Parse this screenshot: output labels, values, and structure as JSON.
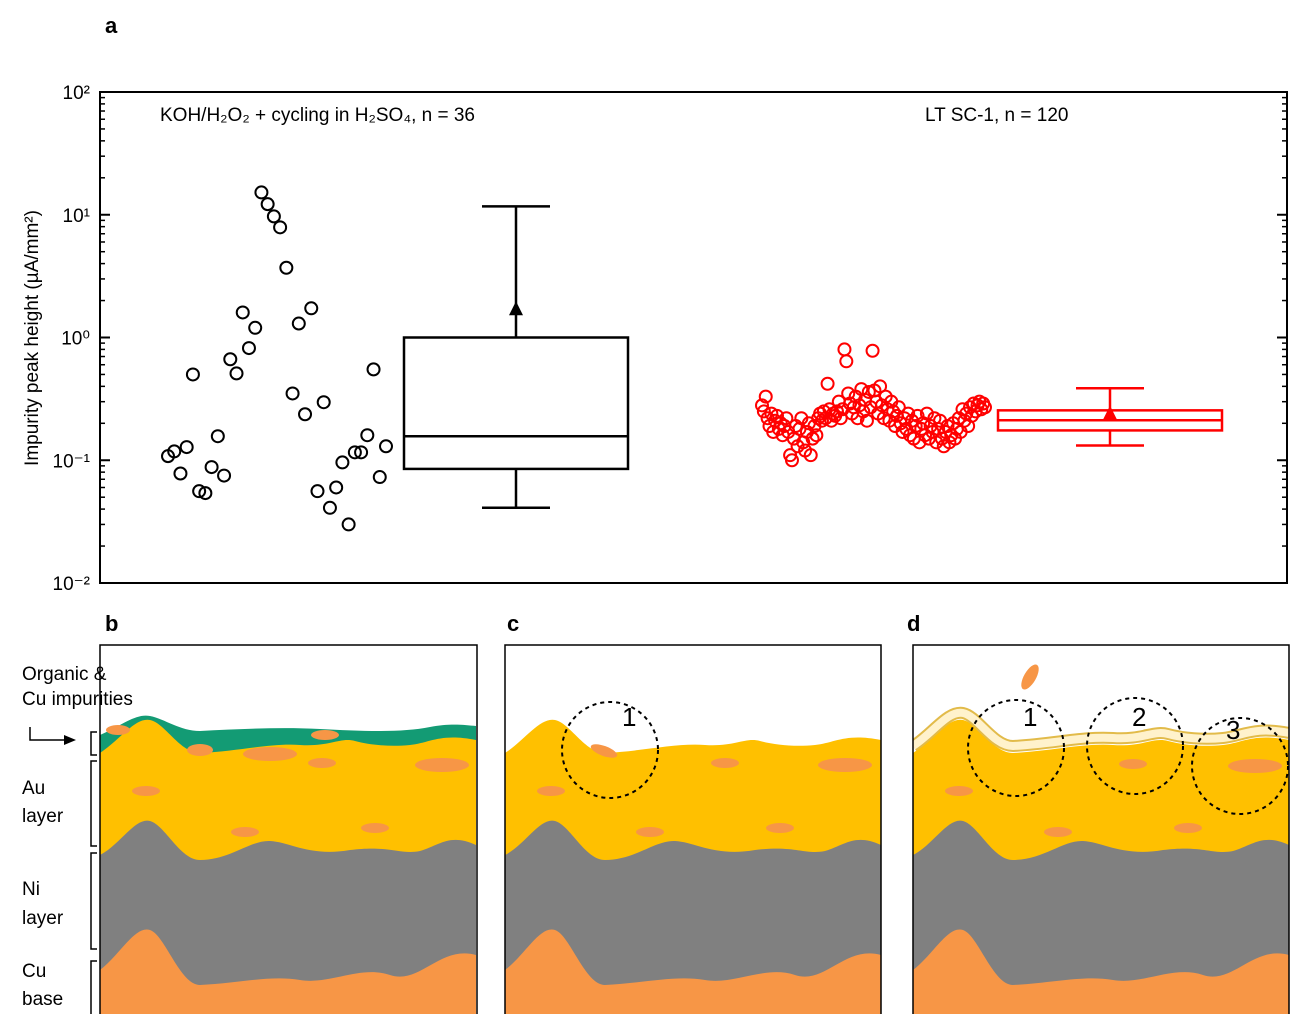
{
  "chart_data": {
    "type": "scatter_box",
    "panel_label": "a",
    "ylabel": "Impurity peak height (µA/mm²)",
    "log_scale": true,
    "ylim": [
      0.01,
      100
    ],
    "yticks": [
      {
        "value": 0.01,
        "label": "10⁻²"
      },
      {
        "value": 0.1,
        "label": "10⁻¹"
      },
      {
        "value": 1,
        "label": "10⁰"
      },
      {
        "value": 10,
        "label": "10¹"
      },
      {
        "value": 100,
        "label": "10²"
      }
    ],
    "series": [
      {
        "name": "KOH/H₂O₂ + cycling in H₂SO₄, n = 36",
        "color": "#000000",
        "values": [
          0.108,
          0.118,
          0.078,
          0.128,
          0.5,
          0.056,
          0.054,
          0.088,
          0.157,
          0.075,
          0.665,
          0.51,
          1.6,
          0.82,
          1.2,
          15.2,
          12.2,
          9.7,
          7.9,
          3.7,
          0.35,
          1.3,
          0.237,
          1.73,
          0.056,
          0.297,
          0.041,
          0.06,
          0.096,
          0.03,
          0.116,
          0.116,
          0.16,
          0.55,
          0.073,
          0.13
        ],
        "box": {
          "whisker_high": 11.7,
          "mean": 1.7,
          "q3": 1.0,
          "median": 0.157,
          "q1": 0.085,
          "whisker_low": 0.041
        }
      },
      {
        "name": "LT SC-1, n = 120",
        "color": "#ff0000",
        "values": [
          0.28,
          0.25,
          0.33,
          0.22,
          0.19,
          0.24,
          0.17,
          0.21,
          0.23,
          0.18,
          0.2,
          0.16,
          0.19,
          0.22,
          0.17,
          0.11,
          0.1,
          0.15,
          0.19,
          0.13,
          0.18,
          0.22,
          0.14,
          0.12,
          0.17,
          0.2,
          0.11,
          0.15,
          0.19,
          0.16,
          0.22,
          0.24,
          0.21,
          0.25,
          0.22,
          0.42,
          0.26,
          0.21,
          0.24,
          0.23,
          0.25,
          0.3,
          0.22,
          0.26,
          0.8,
          0.64,
          0.35,
          0.29,
          0.24,
          0.27,
          0.33,
          0.22,
          0.28,
          0.38,
          0.25,
          0.31,
          0.21,
          0.36,
          0.27,
          0.78,
          0.37,
          0.3,
          0.24,
          0.4,
          0.28,
          0.22,
          0.33,
          0.26,
          0.21,
          0.3,
          0.25,
          0.19,
          0.23,
          0.27,
          0.2,
          0.17,
          0.22,
          0.18,
          0.24,
          0.16,
          0.21,
          0.15,
          0.19,
          0.23,
          0.14,
          0.18,
          0.2,
          0.16,
          0.24,
          0.15,
          0.19,
          0.17,
          0.22,
          0.14,
          0.18,
          0.21,
          0.15,
          0.13,
          0.17,
          0.19,
          0.14,
          0.16,
          0.2,
          0.15,
          0.18,
          0.22,
          0.17,
          0.26,
          0.21,
          0.24,
          0.19,
          0.27,
          0.23,
          0.29,
          0.25,
          0.28,
          0.3,
          0.26,
          0.29,
          0.27
        ],
        "box": {
          "whisker_high": 0.386,
          "mean": 0.24,
          "q3": 0.255,
          "median": 0.212,
          "q1": 0.175,
          "whisker_low": 0.132
        }
      }
    ]
  },
  "diagram": {
    "panel_labels": [
      "b",
      "c",
      "d"
    ],
    "annotations": [
      "Organic &",
      "Cu impurities",
      "Au",
      "layer",
      "Ni",
      "layer",
      "Cu",
      "base"
    ],
    "circle_labels": [
      "1",
      "1",
      "2",
      "3"
    ]
  }
}
